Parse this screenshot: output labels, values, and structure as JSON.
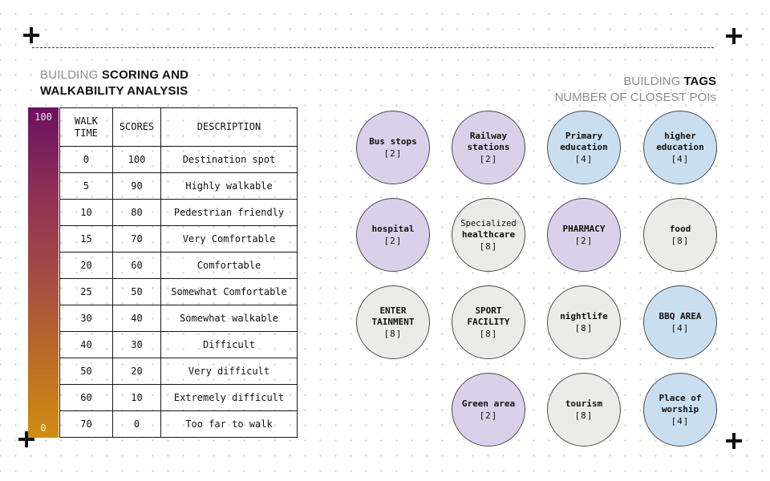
{
  "left_title": {
    "prefix": "BUILDING",
    "emphasis1": "SCORING AND",
    "emphasis2": "WALKABILITY ANALYSIS"
  },
  "right_title": {
    "prefix": "BUILDING",
    "emphasis": "TAGS",
    "subtitle": "NUMBER OF CLOSEST POIs"
  },
  "colorbar": {
    "top_label": "100",
    "bottom_label": "0",
    "gradient": [
      "#6c1062",
      "#8c2f55",
      "#a34a46",
      "#ba6b26",
      "#cf8d0f"
    ]
  },
  "score_table": {
    "columns": [
      "WALK TIME",
      "SCORES",
      "DESCRIPTION"
    ],
    "rows": [
      [
        "0",
        "100",
        "Destination spot"
      ],
      [
        "5",
        "90",
        "Highly walkable"
      ],
      [
        "10",
        "80",
        "Pedestrian friendly"
      ],
      [
        "15",
        "70",
        "Very Comfortable"
      ],
      [
        "20",
        "60",
        "Comfortable"
      ],
      [
        "25",
        "50",
        "Somewhat Comfortable"
      ],
      [
        "30",
        "40",
        "Somewhat walkable"
      ],
      [
        "40",
        "30",
        "Difficult"
      ],
      [
        "50",
        "20",
        "Very difficult"
      ],
      [
        "60",
        "10",
        "Extremely difficult"
      ],
      [
        "70",
        "0",
        "Too far to walk"
      ]
    ]
  },
  "tags": {
    "palette": {
      "purple": "#d9d1e9",
      "blue": "#c9dff0",
      "gray": "#ebebe9",
      "border": "#4a4a4a"
    },
    "items": [
      {
        "lines": [
          {
            "text": "Bus stops",
            "bold": true
          }
        ],
        "count": "[2]",
        "color": "purple",
        "row": 0,
        "col": 0
      },
      {
        "lines": [
          {
            "text": "Railway",
            "bold": true
          },
          {
            "text": "stations",
            "bold": true
          }
        ],
        "count": "[2]",
        "color": "purple",
        "row": 0,
        "col": 1
      },
      {
        "lines": [
          {
            "text": "Primary",
            "bold": true
          },
          {
            "text": "education",
            "bold": true
          }
        ],
        "count": "[4]",
        "color": "blue",
        "row": 0,
        "col": 2
      },
      {
        "lines": [
          {
            "text": "higher",
            "bold": true
          },
          {
            "text": "education",
            "bold": true
          }
        ],
        "count": "[4]",
        "color": "blue",
        "row": 0,
        "col": 3
      },
      {
        "lines": [
          {
            "text": "hospital",
            "bold": true
          }
        ],
        "count": "[2]",
        "color": "purple",
        "row": 1,
        "col": 0
      },
      {
        "lines": [
          {
            "text": "Specialized",
            "bold": false
          },
          {
            "text": "healthcare",
            "bold": true
          }
        ],
        "count": "[8]",
        "color": "gray",
        "row": 1,
        "col": 1
      },
      {
        "lines": [
          {
            "text": "PHARMACY",
            "bold": true
          }
        ],
        "count": "[2]",
        "color": "purple",
        "row": 1,
        "col": 2
      },
      {
        "lines": [
          {
            "text": "food",
            "bold": true
          }
        ],
        "count": "[8]",
        "color": "gray",
        "row": 1,
        "col": 3
      },
      {
        "lines": [
          {
            "text": "ENTER",
            "bold": true
          },
          {
            "text": "TAINMENT",
            "bold": true
          }
        ],
        "count": "[8]",
        "color": "gray",
        "row": 2,
        "col": 0
      },
      {
        "lines": [
          {
            "text": "SPORT",
            "bold": true
          },
          {
            "text": "FACILITY",
            "bold": true
          }
        ],
        "count": "[8]",
        "color": "gray",
        "row": 2,
        "col": 1
      },
      {
        "lines": [
          {
            "text": "nightlife",
            "bold": true
          }
        ],
        "count": "[8]",
        "color": "gray",
        "row": 2,
        "col": 2
      },
      {
        "lines": [
          {
            "text": "BBQ AREA",
            "bold": true
          }
        ],
        "count": "[4]",
        "color": "blue",
        "row": 2,
        "col": 3
      },
      {
        "lines": [
          {
            "text": "Green area",
            "bold": true
          }
        ],
        "count": "[2]",
        "color": "purple",
        "row": 3,
        "col": 1
      },
      {
        "lines": [
          {
            "text": "tourism",
            "bold": true
          }
        ],
        "count": "[8]",
        "color": "gray",
        "row": 3,
        "col": 2
      },
      {
        "lines": [
          {
            "text": "Place of",
            "bold": true
          },
          {
            "text": "worship",
            "bold": true
          }
        ],
        "count": "[4]",
        "color": "blue",
        "row": 3,
        "col": 3
      }
    ]
  },
  "chart_data": [
    {
      "type": "table",
      "title": "BUILDING SCORING AND WALKABILITY ANALYSIS",
      "columns": [
        "WALK TIME",
        "SCORES",
        "DESCRIPTION"
      ],
      "rows": [
        [
          0,
          100,
          "Destination spot"
        ],
        [
          5,
          90,
          "Highly walkable"
        ],
        [
          10,
          80,
          "Pedestrian friendly"
        ],
        [
          15,
          70,
          "Very Comfortable"
        ],
        [
          20,
          60,
          "Comfortable"
        ],
        [
          25,
          50,
          "Somewhat Comfortable"
        ],
        [
          30,
          40,
          "Somewhat walkable"
        ],
        [
          40,
          30,
          "Difficult"
        ],
        [
          50,
          20,
          "Very difficult"
        ],
        [
          60,
          10,
          "Extremely difficult"
        ],
        [
          70,
          0,
          "Too far to walk"
        ]
      ],
      "colorbar_range": [
        0,
        100
      ]
    },
    {
      "type": "bar",
      "title": "BUILDING TAGS — NUMBER OF CLOSEST POIs",
      "categories": [
        "Bus stops",
        "Railway stations",
        "Primary education",
        "higher education",
        "hospital",
        "Specialized healthcare",
        "PHARMACY",
        "food",
        "ENTERTAINMENT",
        "SPORT FACILITY",
        "nightlife",
        "BBQ AREA",
        "Green area",
        "tourism",
        "Place of worship"
      ],
      "values": [
        2,
        2,
        4,
        4,
        2,
        8,
        2,
        8,
        8,
        8,
        8,
        4,
        2,
        8,
        4
      ],
      "group_colors": [
        "purple",
        "purple",
        "blue",
        "blue",
        "purple",
        "gray",
        "purple",
        "gray",
        "gray",
        "gray",
        "gray",
        "blue",
        "purple",
        "gray",
        "blue"
      ]
    }
  ]
}
